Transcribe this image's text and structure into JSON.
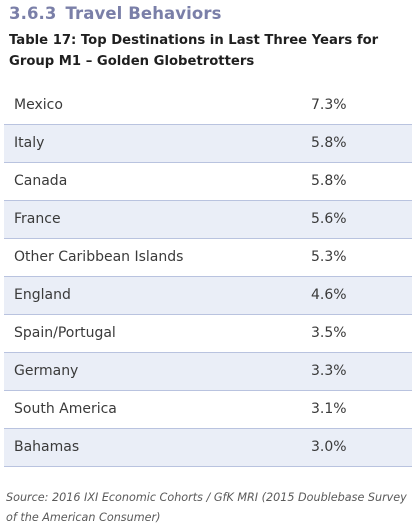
{
  "section": {
    "number": "3.6.3",
    "title": "Travel Behaviors"
  },
  "table": {
    "caption": "Table 17: Top Destinations in Last Three Years for Group M1 – Golden Globetrotters",
    "rows": [
      {
        "destination": "Mexico",
        "percent": "7.3%"
      },
      {
        "destination": "Italy",
        "percent": "5.8%"
      },
      {
        "destination": "Canada",
        "percent": "5.8%"
      },
      {
        "destination": "France",
        "percent": "5.6%"
      },
      {
        "destination": "Other Caribbean Islands",
        "percent": "5.3%"
      },
      {
        "destination": "England",
        "percent": "4.6%"
      },
      {
        "destination": "Spain/Portugal",
        "percent": "3.5%"
      },
      {
        "destination": "Germany",
        "percent": "3.3%"
      },
      {
        "destination": "South America",
        "percent": "3.1%"
      },
      {
        "destination": "Bahamas",
        "percent": "3.0%"
      }
    ]
  },
  "source": "Source: 2016 IXI Economic Cohorts / GfK MRI (2015 Doublebase Survey of the American Consumer)",
  "colors": {
    "heading": "#7a7fa8",
    "stripe_fill": "#eaeef7",
    "stripe_border": "#b9c3df"
  }
}
